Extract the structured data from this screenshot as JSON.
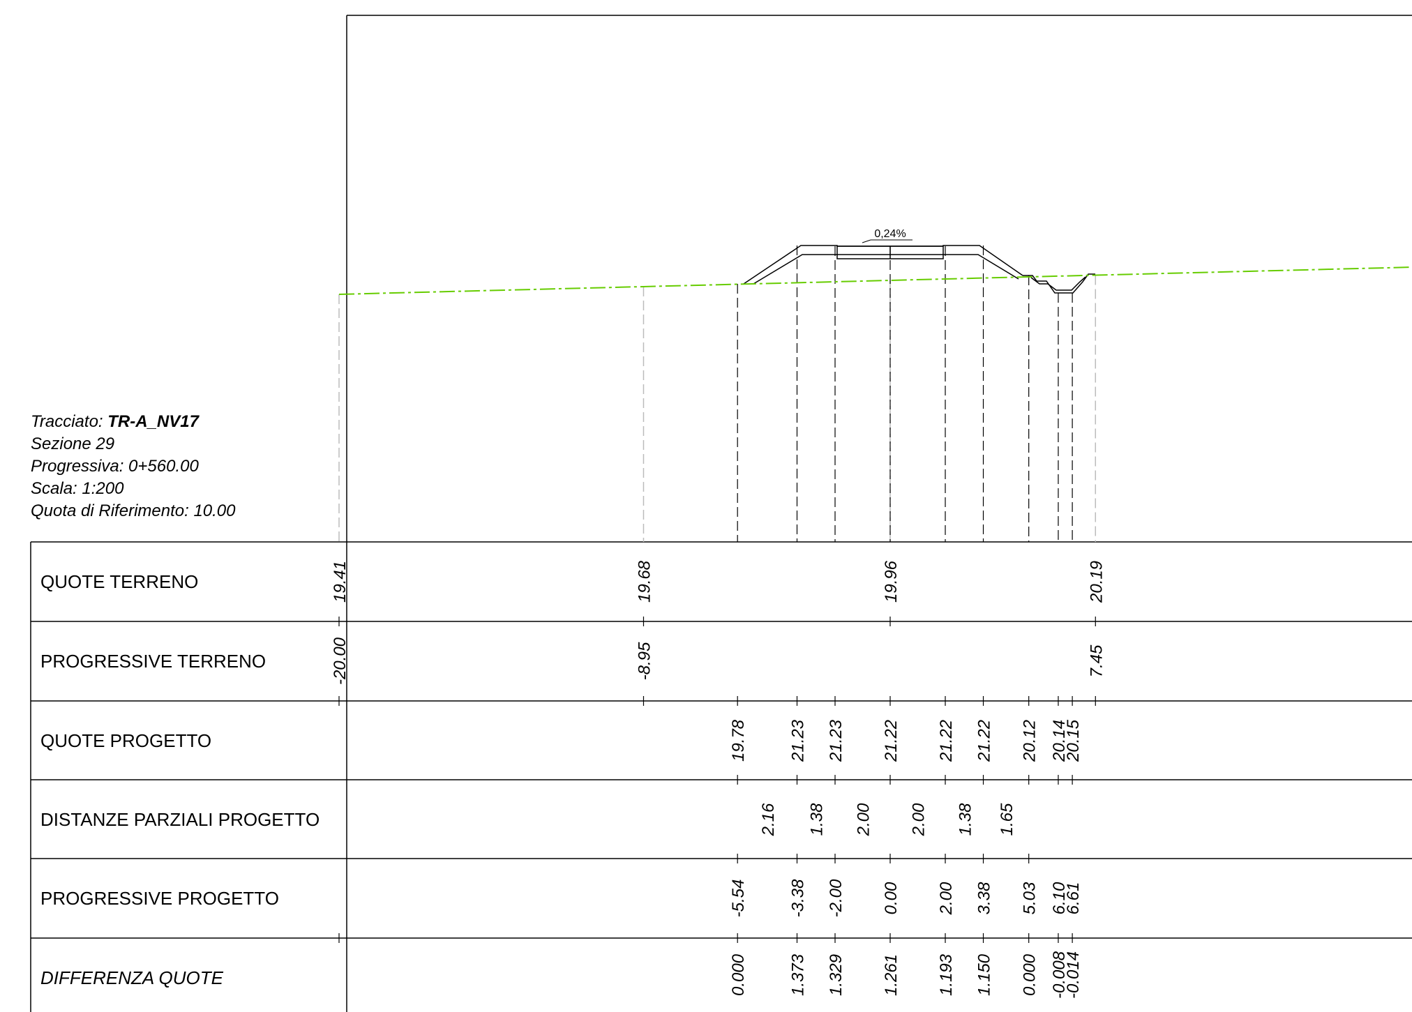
{
  "info": {
    "tracciato_label": "Tracciato:",
    "tracciato_value": "TR-A_NV17",
    "sezione": "Sezione 29",
    "progressiva": "Progressiva: 0+560.00",
    "scala": "Scala: 1:200",
    "quota_riferimento": "Quota di Riferimento: 10.00"
  },
  "slope_label": "0,24%",
  "rows": [
    {
      "label": "QUOTE TERRENO",
      "italic": false
    },
    {
      "label": "PROGRESSIVE TERRENO",
      "italic": false
    },
    {
      "label": "QUOTE PROGETTO",
      "italic": false
    },
    {
      "label": "DISTANZE PARZIALI PROGETTO",
      "italic": false
    },
    {
      "label": "PROGRESSIVE PROGETTO",
      "italic": false
    },
    {
      "label": "DIFFERENZA QUOTE",
      "italic": true
    }
  ],
  "terrain_points": [
    {
      "x": -20.0,
      "quota": "19.41",
      "progressiva": "-20.00"
    },
    {
      "x": -8.95,
      "quota": "19.68",
      "progressiva": "-8.95"
    },
    {
      "x": 0.0,
      "quota": "19.96",
      "progressiva": ""
    },
    {
      "x": 7.45,
      "quota": "20.19",
      "progressiva": "7.45"
    }
  ],
  "project_points": [
    {
      "x": -5.54,
      "quota": "19.78",
      "progressiva": "-5.54",
      "differenza": "0.000"
    },
    {
      "x": -3.38,
      "quota": "21.23",
      "progressiva": "-3.38",
      "differenza": "1.373"
    },
    {
      "x": -2.0,
      "quota": "21.23",
      "progressiva": "-2.00",
      "differenza": "1.329"
    },
    {
      "x": 0.0,
      "quota": "21.22",
      "progressiva": "0.00",
      "differenza": "1.261"
    },
    {
      "x": 2.0,
      "quota": "21.22",
      "progressiva": "2.00",
      "differenza": "1.193"
    },
    {
      "x": 3.38,
      "quota": "21.22",
      "progressiva": "3.38",
      "differenza": "1.150"
    },
    {
      "x": 5.03,
      "quota": "20.12",
      "progressiva": "5.03",
      "differenza": "0.000"
    },
    {
      "x": 6.1,
      "quota": "20.14",
      "progressiva": "6.10",
      "differenza": "-0.008"
    },
    {
      "x": 6.61,
      "quota": "20.15",
      "progressiva": "6.61",
      "differenza": "-0.014"
    }
  ],
  "partial_distances": [
    "2.16",
    "1.38",
    "2.00",
    "2.00",
    "1.38",
    "1.65"
  ],
  "colors": {
    "terrain_line": "#66cc00",
    "lines": "#000000",
    "terrain_guides": "#bbbbbb"
  }
}
